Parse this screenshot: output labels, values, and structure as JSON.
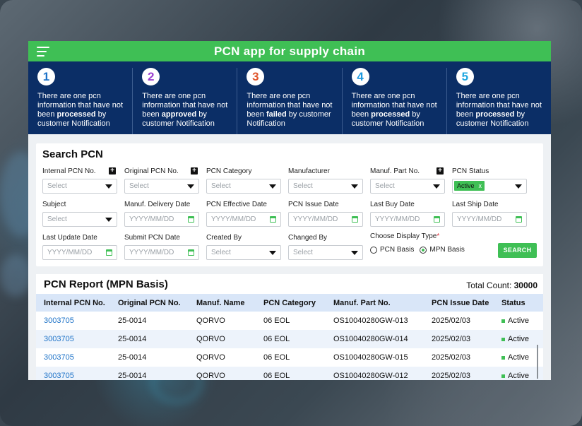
{
  "app": {
    "title": "PCN app for supply chain"
  },
  "banner": {
    "steps": [
      {
        "num": "1",
        "color": "#1e73c8",
        "pre": "There are one pcn information that have not been ",
        "bold": "processed",
        "post": " by customer Notification"
      },
      {
        "num": "2",
        "color": "#9b3fd0",
        "pre": "There are one pcn information that have not been ",
        "bold": "approved",
        "post": " by customer Notification"
      },
      {
        "num": "3",
        "color": "#e0552b",
        "pre": "There are one pcn information that have not been ",
        "bold": "failed",
        "post": " by customer Notification"
      },
      {
        "num": "4",
        "color": "#1e9ae0",
        "pre": "There are one pcn information that have not been ",
        "bold": "processed",
        "post": " by customer Notification"
      },
      {
        "num": "5",
        "color": "#1ea7e0",
        "pre": "There are one pcn information that have not been ",
        "bold": "processed",
        "post": " by customer Notification"
      }
    ]
  },
  "search": {
    "title": "Search PCN",
    "fields": {
      "internal_pcn": {
        "label": "Internal PCN No.",
        "placeholder": "Select"
      },
      "original_pcn": {
        "label": "Original PCN No.",
        "placeholder": "Select"
      },
      "pcn_category": {
        "label": "PCN Category",
        "placeholder": "Select"
      },
      "manufacturer": {
        "label": "Manufacturer",
        "placeholder": "Select"
      },
      "manuf_part": {
        "label": "Manuf. Part No.",
        "placeholder": "Select"
      },
      "pcn_status": {
        "label": "PCN Status",
        "value": "Active",
        "remove": "x"
      },
      "subject": {
        "label": "Subject",
        "placeholder": "Select"
      },
      "manuf_delivery_date": {
        "label": "Manuf. Delivery Date",
        "placeholder": "YYYY/MM/DD"
      },
      "pcn_effective_date": {
        "label": "PCN Effective Date",
        "placeholder": "YYYY/MM/DD"
      },
      "pcn_issue_date": {
        "label": "PCN Issue Date",
        "placeholder": "YYYY/MM/DD"
      },
      "last_buy_date": {
        "label": "Last Buy Date",
        "placeholder": "YYYY/MM/DD"
      },
      "last_ship_date": {
        "label": "Last Ship Date",
        "placeholder": "YYYY/MM/DD"
      },
      "last_update_date": {
        "label": "Last Update Date",
        "placeholder": "YYYY/MM/DD"
      },
      "submit_pcn_date": {
        "label": "Submit PCN Date",
        "placeholder": "YYYY/MM/DD"
      },
      "created_by": {
        "label": "Created By",
        "placeholder": "Select"
      },
      "changed_by": {
        "label": "Changed By",
        "placeholder": "Select"
      }
    },
    "display_type": {
      "label": "Choose Display Type",
      "required": "*",
      "options": [
        "PCN Basis",
        "MPN Basis"
      ],
      "selected": "MPN Basis"
    },
    "button": "SEARCH"
  },
  "report": {
    "title": "PCN Report (MPN Basis)",
    "total_label": "Total Count:",
    "total_value": "30000",
    "columns": [
      "Internal PCN No.",
      "Original PCN No.",
      "Manuf. Name",
      "PCN Category",
      "Manuf. Part No.",
      "PCN Issue Date",
      "Status"
    ],
    "rows": [
      [
        "3003705",
        "25-0014",
        "QORVO",
        "06 EOL",
        "OS10040280GW-013",
        "2025/02/03",
        "Active"
      ],
      [
        "3003705",
        "25-0014",
        "QORVO",
        "06 EOL",
        "OS10040280GW-014",
        "2025/02/03",
        "Active"
      ],
      [
        "3003705",
        "25-0014",
        "QORVO",
        "06 EOL",
        "OS10040280GW-015",
        "2025/02/03",
        "Active"
      ],
      [
        "3003705",
        "25-0014",
        "QORVO",
        "06 EOL",
        "OS10040280GW-012",
        "2025/02/03",
        "Active"
      ]
    ]
  }
}
